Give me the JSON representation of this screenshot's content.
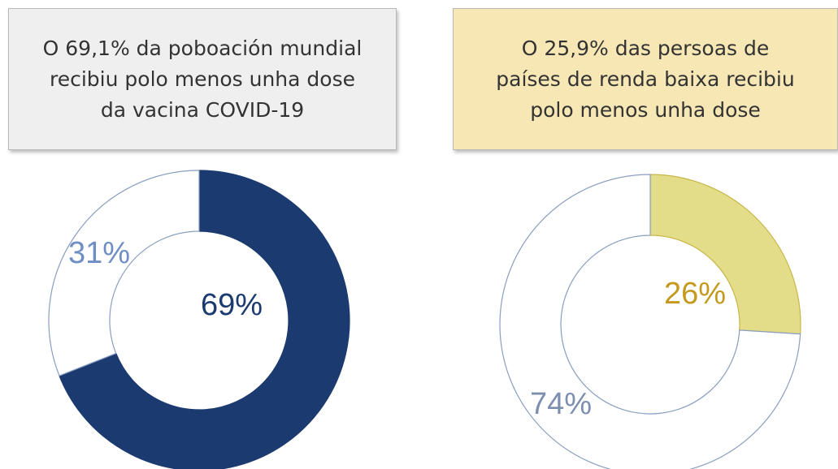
{
  "chart_data": [
    {
      "type": "donut",
      "title": "O 69,1% da poboación mundial recibiu polo menos unha dose da vacina COVID-19",
      "categories": [
        null,
        null
      ],
      "values": [
        69,
        31
      ],
      "value_labels": [
        "69%",
        "31%"
      ],
      "colors": [
        "#1b3a70",
        "#ffffff"
      ],
      "label_colors": [
        "#1b3a70",
        "#6f8fc4"
      ],
      "box_color": "#efefef"
    },
    {
      "type": "donut",
      "title": "O 25,9% das persoas de países de renda baixa recibiu polo menos unha dose",
      "categories": [
        null,
        null
      ],
      "values": [
        26,
        74
      ],
      "value_labels": [
        "26%",
        "74%"
      ],
      "colors": [
        "#e3dd8a",
        "#ffffff"
      ],
      "label_colors": [
        "#c49a1e",
        "#7d8fb0"
      ],
      "box_color": "#f6e7b5"
    }
  ]
}
